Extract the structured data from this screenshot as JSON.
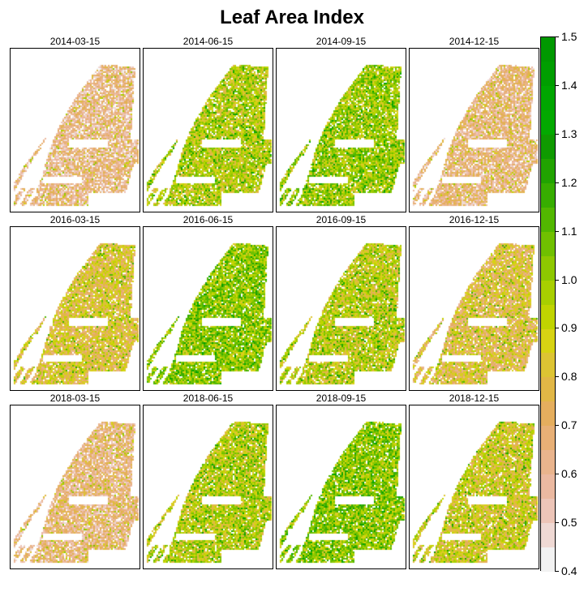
{
  "title": "Leaf Area Index",
  "chart_data": {
    "type": "heatmap",
    "title": "Leaf Area Index",
    "panels": [
      {
        "label": "2014-03-15",
        "level": 0.6
      },
      {
        "label": "2014-06-15",
        "level": 0.92
      },
      {
        "label": "2014-09-15",
        "level": 0.97
      },
      {
        "label": "2014-12-15",
        "level": 0.62
      },
      {
        "label": "2016-03-15",
        "level": 0.78
      },
      {
        "label": "2016-06-15",
        "level": 1.0
      },
      {
        "label": "2016-09-15",
        "level": 0.9
      },
      {
        "label": "2016-12-15",
        "level": 0.76
      },
      {
        "label": "2018-03-15",
        "level": 0.63
      },
      {
        "label": "2018-06-15",
        "level": 0.92
      },
      {
        "label": "2018-09-15",
        "level": 1.0
      },
      {
        "label": "2018-12-15",
        "level": 0.85
      }
    ],
    "legend": {
      "position": "right",
      "range": [
        0.4,
        1.5
      ],
      "ticks": [
        "1.5",
        "1.4",
        "1.3",
        "1.2",
        "1.1",
        "1.0",
        "0.9",
        "0.8",
        "0.7",
        "0.6",
        "0.5",
        "0.4"
      ],
      "colors": [
        "#f2f2f2",
        "#efd9d4",
        "#edc5b8",
        "#ebb9a1",
        "#e9b48d",
        "#e8b076",
        "#e5ae5e",
        "#e1b746",
        "#ddc433",
        "#d7d313",
        "#c0d400",
        "#a8cf00",
        "#8ec800",
        "#70c000",
        "#52b700",
        "#37ad00",
        "#21a300",
        "#0f9a00",
        "#03a900",
        "#00a600",
        "#009e00",
        "#009800"
      ]
    }
  }
}
